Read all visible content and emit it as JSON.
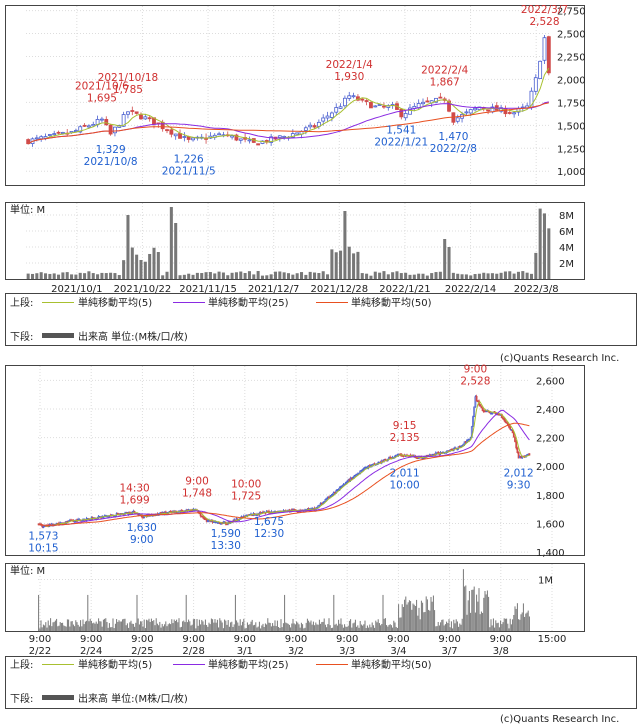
{
  "copyright": "(c)Quants Research Inc.",
  "legend": {
    "upper_label": "上段:",
    "lower_label": "下段:",
    "ma5": "単純移動平均(5)",
    "ma25": "単純移動平均(25)",
    "ma50": "単純移動平均(50)",
    "volume": "出来高 単位:(M株/口/枚)"
  },
  "colors": {
    "up": "#4a5fd0",
    "down": "#d04a4a",
    "ma5": "#a8c030",
    "ma25": "#8a2be2",
    "ma50": "#e85020",
    "volume": "#888888",
    "annot_high": "#d03030",
    "annot_low": "#2060d0",
    "text": "#222222"
  },
  "chart_data": [
    {
      "type": "candlestick",
      "title": "daily",
      "yticks": [
        "2,750",
        "2,500",
        "2,250",
        "2,000",
        "1,750",
        "1,500",
        "1,250",
        "1,000"
      ],
      "ylim": [
        850,
        2800
      ],
      "xticks": [
        "2021/10/1",
        "2021/10/22",
        "2021/11/15",
        "2021/12/7",
        "2021/12/28",
        "2022/1/21",
        "2022/2/14",
        "2022/3/8"
      ],
      "annotations": [
        {
          "text": [
            "2022/3/7",
            "2,528"
          ],
          "kind": "high",
          "value": 2528,
          "idx": 119
        },
        {
          "text": [
            "2022/1/4",
            "1,930"
          ],
          "kind": "high",
          "value": 1930,
          "idx": 74
        },
        {
          "text": [
            "2022/2/4",
            "1,867"
          ],
          "kind": "high",
          "value": 1867,
          "idx": 96
        },
        {
          "text": [
            "2021/10/18",
            "1,785"
          ],
          "kind": "high",
          "value": 1785,
          "idx": 23
        },
        {
          "text": [
            "2021/10/6",
            "1,695"
          ],
          "kind": "high",
          "value": 1695,
          "idx": 17
        },
        {
          "text": [
            "1,329",
            "2021/10/8"
          ],
          "kind": "low",
          "value": 1329,
          "idx": 19
        },
        {
          "text": [
            "1,226",
            "2021/11/5"
          ],
          "kind": "low",
          "value": 1226,
          "idx": 37
        },
        {
          "text": [
            "1,541",
            "2022/1/21"
          ],
          "kind": "low",
          "value": 1541,
          "idx": 86
        },
        {
          "text": [
            "1,470",
            "2022/2/8"
          ],
          "kind": "low",
          "value": 1470,
          "idx": 98
        }
      ],
      "volume_unit": "単位: M",
      "volume_yticks": [
        "8M",
        "6M",
        "4M",
        "2M"
      ],
      "volume_ylim": [
        0,
        9.5
      ]
    },
    {
      "type": "candlestick",
      "title": "5-minute",
      "yticks": [
        "2,600",
        "2,400",
        "2,200",
        "2,000",
        "1,800",
        "1,600",
        "1,400"
      ],
      "ylim": [
        1380,
        2700
      ],
      "xticks": [
        [
          "9:00",
          "2/22"
        ],
        [
          "9:00",
          "2/24"
        ],
        [
          "9:00",
          "2/25"
        ],
        [
          "9:00",
          "2/28"
        ],
        [
          "9:00",
          "3/1"
        ],
        [
          "9:00",
          "3/2"
        ],
        [
          "9:00",
          "3/3"
        ],
        [
          "9:00",
          "3/4"
        ],
        [
          "9:00",
          "3/7"
        ],
        [
          "9:00",
          "3/8"
        ],
        [
          "15:00",
          ""
        ]
      ],
      "annotations": [
        {
          "text": [
            "9:00",
            "2,528"
          ],
          "kind": "high",
          "value": 2528,
          "idx": 364
        },
        {
          "text": [
            "9:15",
            "2,135"
          ],
          "kind": "high",
          "value": 2135,
          "idx": 305
        },
        {
          "text": [
            "14:30",
            "1,699"
          ],
          "kind": "high",
          "value": 1699,
          "idx": 80
        },
        {
          "text": [
            "9:00",
            "1,748"
          ],
          "kind": "high",
          "value": 1748,
          "idx": 132
        },
        {
          "text": [
            "10:00",
            "1,725"
          ],
          "kind": "high",
          "value": 1725,
          "idx": 173
        },
        {
          "text": [
            "1,573",
            "10:15"
          ],
          "kind": "low",
          "value": 1573,
          "idx": 4
        },
        {
          "text": [
            "1,630",
            "9:00"
          ],
          "kind": "low",
          "value": 1630,
          "idx": 86
        },
        {
          "text": [
            "1,590",
            "13:30"
          ],
          "kind": "low",
          "value": 1590,
          "idx": 156
        },
        {
          "text": [
            "1,675",
            "12:30"
          ],
          "kind": "low",
          "value": 1675,
          "idx": 192
        },
        {
          "text": [
            "2,011",
            "10:00"
          ],
          "kind": "low",
          "value": 2011,
          "idx": 305
        },
        {
          "text": [
            "2,012",
            "9:30"
          ],
          "kind": "low",
          "value": 2012,
          "idx": 400
        }
      ],
      "volume_unit": "単位: M",
      "volume_yticks": [
        "1M"
      ],
      "volume_ylim": [
        0,
        1.3
      ]
    }
  ]
}
